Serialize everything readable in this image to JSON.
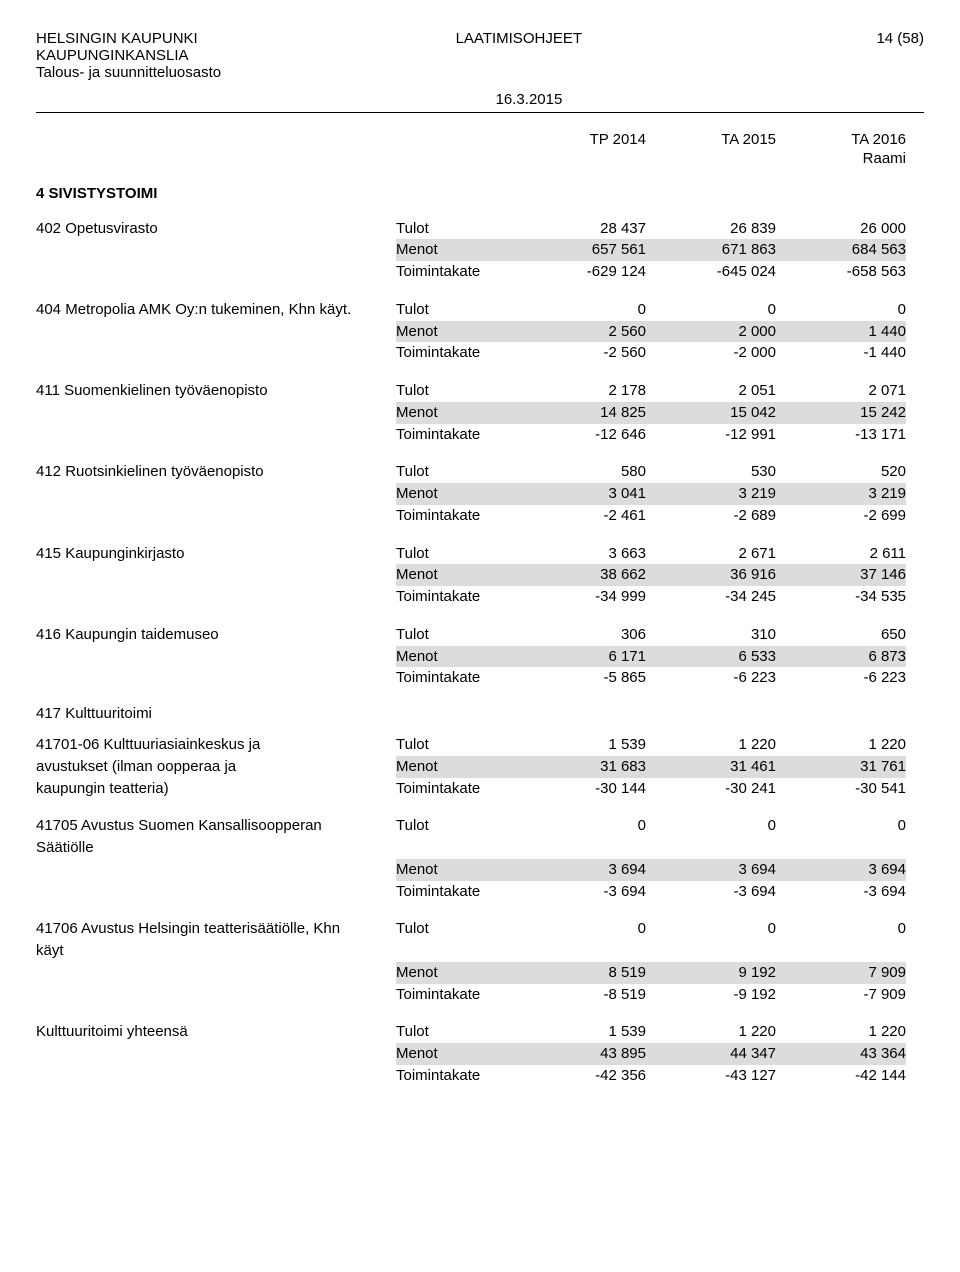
{
  "header": {
    "org1": "HELSINGIN KAUPUNKI",
    "org2": "KAUPUNGINKANSLIA",
    "org3": "Talous- ja suunnitteluosasto",
    "title": "LAATIMISOHJEET",
    "page": "14 (58)",
    "date": "16.3.2015"
  },
  "columns": {
    "y1": "TP 2014",
    "y2": "TA 2015",
    "y3": "TA 2016",
    "sub": "Raami"
  },
  "section": "4 SIVISTYSTOIMI",
  "labels": {
    "tulot": "Tulot",
    "menot": "Menot",
    "toimintakate": "Toimintakate"
  },
  "items": [
    {
      "name": "402 Opetusvirasto",
      "tulot": [
        "28 437",
        "26 839",
        "26 000"
      ],
      "menot": [
        "657 561",
        "671 863",
        "684 563"
      ],
      "tk": [
        "-629 124",
        "-645 024",
        "-658 563"
      ]
    },
    {
      "name": "404 Metropolia AMK Oy:n tukeminen, Khn käyt.",
      "tulot": [
        "0",
        "0",
        "0"
      ],
      "menot": [
        "2 560",
        "2 000",
        "1 440"
      ],
      "tk": [
        "-2 560",
        "-2 000",
        "-1 440"
      ]
    },
    {
      "name": "411 Suomenkielinen työväenopisto",
      "tulot": [
        "2 178",
        "2 051",
        "2 071"
      ],
      "menot": [
        "14 825",
        "15 042",
        "15 242"
      ],
      "tk": [
        "-12 646",
        "-12 991",
        "-13 171"
      ]
    },
    {
      "name": "412 Ruotsinkielinen työväenopisto",
      "tulot": [
        "580",
        "530",
        "520"
      ],
      "menot": [
        "3 041",
        "3 219",
        "3 219"
      ],
      "tk": [
        "-2 461",
        "-2 689",
        "-2 699"
      ]
    },
    {
      "name": "415 Kaupunginkirjasto",
      "tulot": [
        "3 663",
        "2 671",
        "2 611"
      ],
      "menot": [
        "38 662",
        "36 916",
        "37 146"
      ],
      "tk": [
        "-34 999",
        "-34 245",
        "-34 535"
      ]
    },
    {
      "name": "416 Kaupungin taidemuseo",
      "tulot": [
        "306",
        "310",
        "650"
      ],
      "menot": [
        "6 171",
        "6 533",
        "6 873"
      ],
      "tk": [
        "-5 865",
        "-6 223",
        "-6 223"
      ]
    }
  ],
  "kulttuuritoimi_label": "417 Kulttuuritoimi",
  "kult_items": [
    {
      "name1": "41701-06 Kulttuuriasiainkeskus ja",
      "name2": "avustukset (ilman oopperaa ja",
      "name3": "kaupungin teatteria)",
      "tulot": [
        "1 539",
        "1 220",
        "1 220"
      ],
      "menot": [
        "31 683",
        "31 461",
        "31 761"
      ],
      "tk": [
        "-30 144",
        "-30 241",
        "-30 541"
      ]
    },
    {
      "name1": "41705 Avustus Suomen Kansallisoopperan",
      "name2": "Säätiölle",
      "tulot": [
        "0",
        "0",
        "0"
      ],
      "menot": [
        "3 694",
        "3 694",
        "3 694"
      ],
      "tk": [
        "-3 694",
        "-3 694",
        "-3 694"
      ]
    },
    {
      "name1": "41706 Avustus Helsingin teatterisäätiölle, Khn",
      "name2": "käyt",
      "tulot": [
        "0",
        "0",
        "0"
      ],
      "menot": [
        "8 519",
        "9 192",
        "7 909"
      ],
      "tk": [
        "-8 519",
        "-9 192",
        "-7 909"
      ]
    }
  ],
  "kult_total": {
    "name": "Kulttuuritoimi yhteensä",
    "tulot": [
      "1 539",
      "1 220",
      "1 220"
    ],
    "menot": [
      "43 895",
      "44 347",
      "43 364"
    ],
    "tk": [
      "-42 356",
      "-43 127",
      "-42 144"
    ]
  }
}
